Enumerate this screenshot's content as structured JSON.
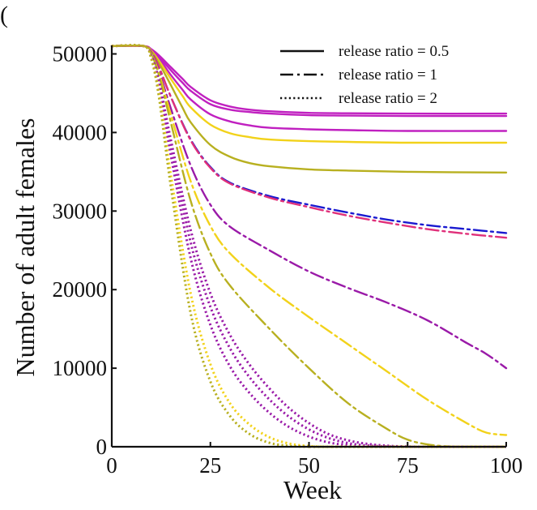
{
  "corner_mark": "(",
  "chart_data": {
    "type": "line",
    "xlabel": "Week",
    "ylabel": "Number of adult females",
    "xlim": [
      0,
      100
    ],
    "ylim": [
      0,
      51000
    ],
    "xticks": [
      0,
      25,
      50,
      75,
      100
    ],
    "xtick_labels": [
      "0",
      "25",
      "50",
      "75",
      "100"
    ],
    "yticks": [
      0,
      10000,
      20000,
      30000,
      40000,
      50000
    ],
    "ytick_labels": [
      "0",
      "10000",
      "20000",
      "30000",
      "40000",
      "50000"
    ],
    "legend": {
      "position": "top-right",
      "entries": [
        {
          "label": "release ratio = 0.5",
          "style": "solid"
        },
        {
          "label": "release ratio = 1",
          "style": "dashdot"
        },
        {
          "label": "release ratio = 2",
          "style": "dotted"
        }
      ]
    },
    "colors": {
      "magenta": "#c020c0",
      "purple": "#9a1aa8",
      "yellow": "#f2d21a",
      "olive": "#b8b020",
      "blue": "#1a1ad0",
      "pink": "#e0307a"
    },
    "series": [
      {
        "name": "solid-magenta-top",
        "style": "solid",
        "color": "magenta",
        "x": [
          0,
          8,
          10,
          12,
          15,
          18,
          20,
          25,
          30,
          35,
          40,
          50,
          60,
          75,
          100
        ],
        "y": [
          51000,
          51000,
          50600,
          49800,
          48300,
          46800,
          45800,
          44100,
          43300,
          42900,
          42700,
          42500,
          42450,
          42400,
          42400
        ]
      },
      {
        "name": "solid-magenta-2",
        "style": "solid",
        "color": "magenta",
        "x": [
          0,
          8,
          10,
          12,
          15,
          18,
          20,
          25,
          30,
          35,
          40,
          50,
          60,
          75,
          100
        ],
        "y": [
          51000,
          51000,
          50600,
          49600,
          47900,
          46300,
          45300,
          43600,
          42900,
          42600,
          42400,
          42200,
          42150,
          42100,
          42100
        ]
      },
      {
        "name": "solid-magenta-3",
        "style": "solid",
        "color": "magenta",
        "x": [
          0,
          8,
          10,
          12,
          15,
          18,
          20,
          25,
          30,
          35,
          40,
          50,
          60,
          75,
          100
        ],
        "y": [
          51000,
          51000,
          50500,
          49400,
          47300,
          45400,
          44200,
          42300,
          41400,
          40900,
          40600,
          40400,
          40300,
          40200,
          40200
        ]
      },
      {
        "name": "solid-yellow",
        "style": "solid",
        "color": "yellow",
        "x": [
          0,
          8,
          10,
          12,
          15,
          18,
          20,
          25,
          30,
          35,
          40,
          50,
          60,
          75,
          100
        ],
        "y": [
          51000,
          51000,
          50400,
          49100,
          46800,
          44600,
          43200,
          41000,
          39900,
          39400,
          39100,
          38900,
          38800,
          38700,
          38700
        ]
      },
      {
        "name": "solid-olive",
        "style": "solid",
        "color": "olive",
        "x": [
          0,
          8,
          10,
          12,
          15,
          18,
          20,
          25,
          30,
          35,
          40,
          50,
          60,
          75,
          100
        ],
        "y": [
          51000,
          51000,
          50300,
          48800,
          46000,
          43100,
          41300,
          38400,
          36900,
          36100,
          35700,
          35300,
          35150,
          35000,
          34900
        ]
      },
      {
        "name": "dashdot-blue",
        "style": "dashdot",
        "color": "blue",
        "x": [
          0,
          8,
          10,
          12,
          15,
          20,
          25,
          30,
          40,
          50,
          60,
          70,
          80,
          90,
          100
        ],
        "y": [
          51000,
          51000,
          50200,
          48300,
          44500,
          39100,
          35600,
          33600,
          31900,
          30800,
          29800,
          28900,
          28200,
          27700,
          27200
        ]
      },
      {
        "name": "dashdot-pink",
        "style": "dashdot",
        "color": "pink",
        "x": [
          0,
          8,
          10,
          12,
          15,
          20,
          25,
          30,
          40,
          50,
          60,
          70,
          80,
          90,
          100
        ],
        "y": [
          51000,
          51000,
          50200,
          48300,
          44500,
          39000,
          35500,
          33500,
          31700,
          30500,
          29400,
          28500,
          27700,
          27100,
          26600
        ]
      },
      {
        "name": "dashdot-purple",
        "style": "dashdot",
        "color": "purple",
        "x": [
          0,
          8,
          10,
          12,
          15,
          20,
          25,
          30,
          40,
          50,
          60,
          70,
          80,
          90,
          95,
          100
        ],
        "y": [
          51000,
          51000,
          50100,
          47800,
          43000,
          35800,
          30800,
          28000,
          25000,
          22300,
          20200,
          18300,
          16100,
          13200,
          11800,
          10000
        ]
      },
      {
        "name": "dashdot-yellow",
        "style": "dashdot",
        "color": "yellow",
        "x": [
          0,
          8,
          10,
          12,
          15,
          20,
          25,
          30,
          40,
          50,
          60,
          70,
          80,
          90,
          95,
          100
        ],
        "y": [
          51000,
          51000,
          50000,
          47500,
          42200,
          33800,
          28100,
          24600,
          20200,
          16500,
          13000,
          9500,
          6000,
          3000,
          1800,
          1500
        ]
      },
      {
        "name": "dashdot-olive",
        "style": "dashdot",
        "color": "olive",
        "x": [
          0,
          8,
          10,
          12,
          15,
          20,
          25,
          30,
          40,
          50,
          60,
          70,
          75,
          80,
          85,
          90,
          100
        ],
        "y": [
          51000,
          51000,
          50000,
          47200,
          41200,
          31300,
          24600,
          20500,
          15000,
          10000,
          5500,
          2200,
          900,
          300,
          50,
          0,
          0
        ]
      },
      {
        "name": "dotted-purple-1",
        "style": "dotted",
        "color": "purple",
        "x": [
          0,
          8,
          10,
          12,
          15,
          20,
          25,
          30,
          35,
          40,
          45,
          50,
          55,
          60,
          65,
          70,
          75,
          80,
          100
        ],
        "y": [
          51000,
          51000,
          49800,
          46500,
          39000,
          27600,
          19500,
          14200,
          10400,
          7400,
          4900,
          3000,
          1600,
          800,
          350,
          120,
          30,
          0,
          0
        ]
      },
      {
        "name": "dotted-purple-2",
        "style": "dotted",
        "color": "purple",
        "x": [
          0,
          8,
          10,
          12,
          15,
          20,
          25,
          30,
          35,
          40,
          45,
          50,
          55,
          60,
          65,
          70,
          75,
          100
        ],
        "y": [
          51000,
          51000,
          49800,
          46200,
          38200,
          26000,
          17800,
          12500,
          8800,
          6000,
          3800,
          2200,
          1100,
          450,
          150,
          40,
          0,
          0
        ]
      },
      {
        "name": "dotted-purple-3",
        "style": "dotted",
        "color": "purple",
        "x": [
          0,
          8,
          10,
          12,
          15,
          20,
          25,
          30,
          35,
          40,
          45,
          50,
          55,
          60,
          65,
          70,
          100
        ],
        "y": [
          51000,
          51000,
          49700,
          45700,
          37000,
          24000,
          15500,
          10200,
          6800,
          4300,
          2500,
          1300,
          550,
          200,
          50,
          0,
          0
        ]
      },
      {
        "name": "dotted-yellow",
        "style": "dotted",
        "color": "yellow",
        "x": [
          0,
          8,
          10,
          12,
          15,
          20,
          25,
          30,
          35,
          40,
          45,
          50,
          55,
          60,
          100
        ],
        "y": [
          51000,
          51000,
          49500,
          45000,
          34500,
          19500,
          10500,
          5500,
          2800,
          1200,
          400,
          80,
          0,
          0,
          0
        ]
      },
      {
        "name": "dotted-olive",
        "style": "dotted",
        "color": "olive",
        "x": [
          0,
          8,
          10,
          12,
          15,
          20,
          25,
          30,
          35,
          40,
          45,
          50,
          55,
          100
        ],
        "y": [
          51000,
          51000,
          49400,
          44400,
          33000,
          17000,
          8300,
          3900,
          1600,
          500,
          100,
          0,
          0,
          0
        ]
      }
    ]
  }
}
